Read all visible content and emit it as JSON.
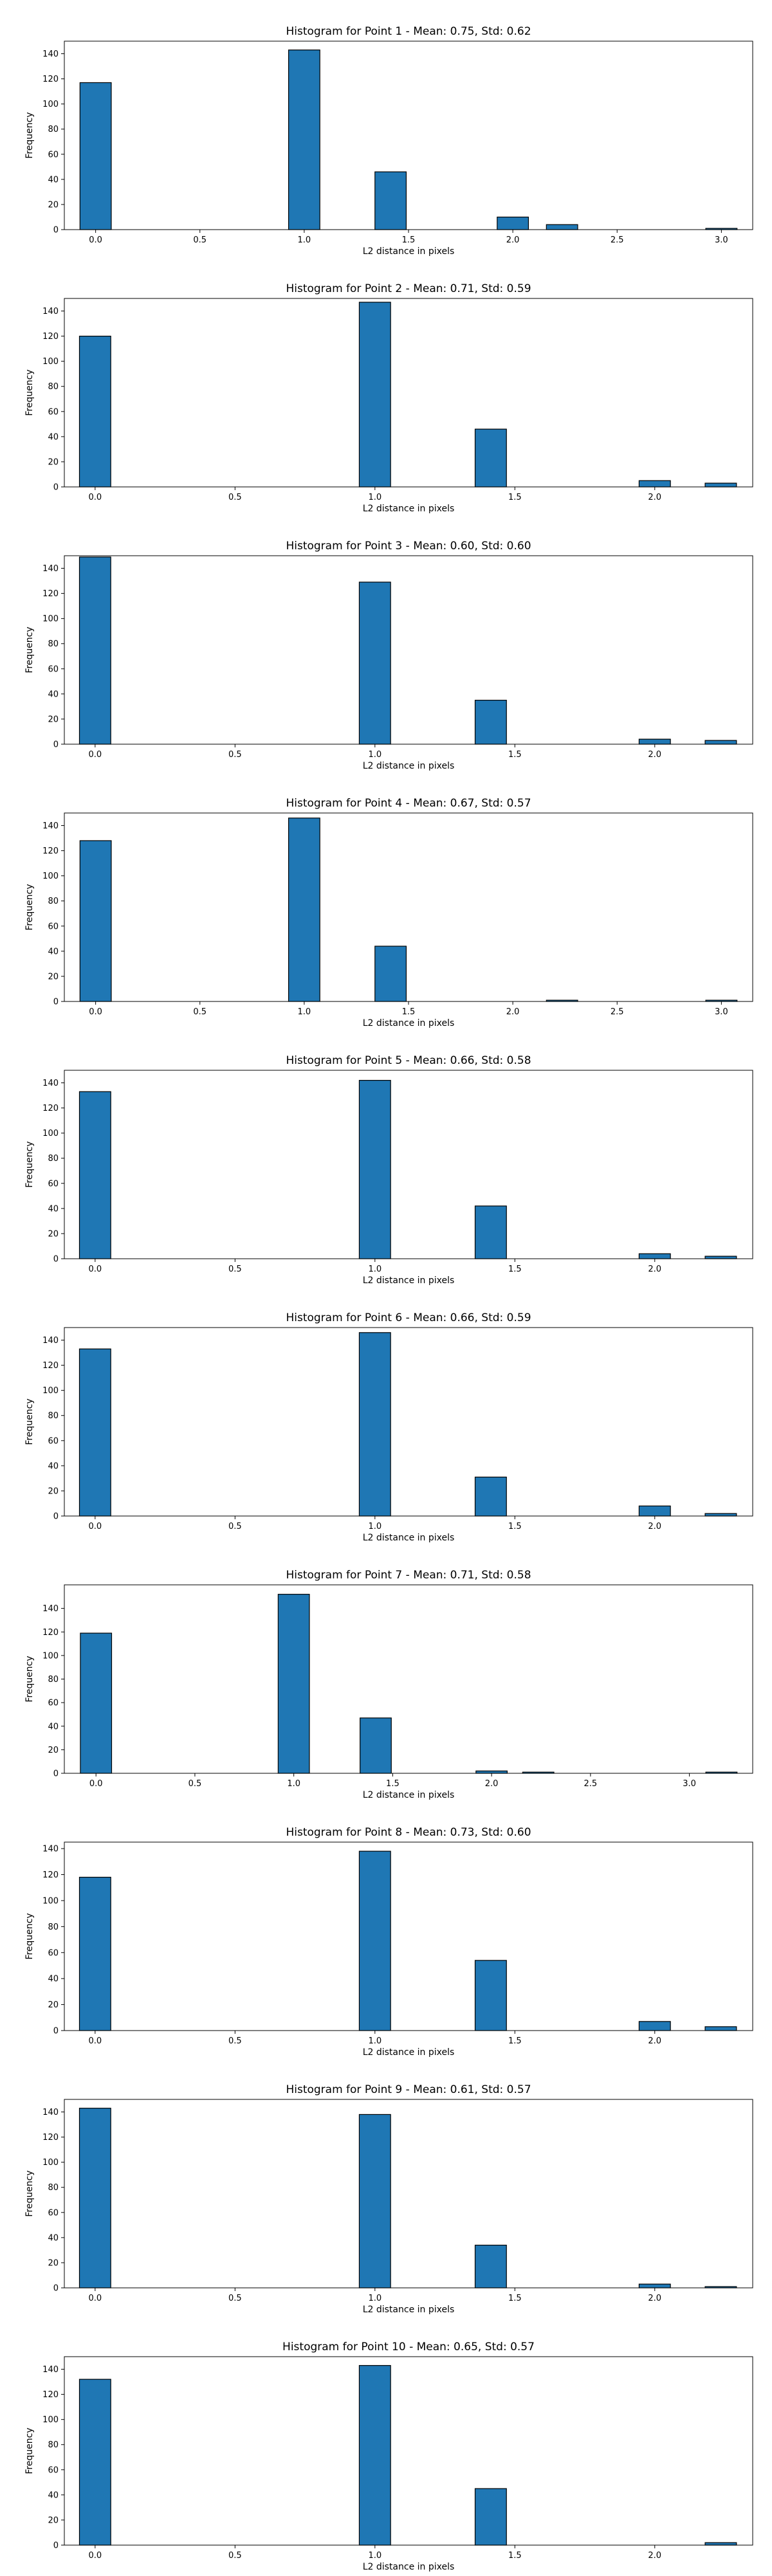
{
  "figure": {
    "ylabel": "Frequency",
    "xlabel": "L2 distance in pixels",
    "bar_color": "#1f77b4",
    "bar_edge_color": "#000000"
  },
  "chart_data": [
    {
      "type": "bar",
      "title": "Histogram for Point 1 - Mean: 0.75, Std: 0.62",
      "xlabel": "L2 distance in pixels",
      "ylabel": "Frequency",
      "xlim": [
        -0.15,
        3.15
      ],
      "ylim": [
        0,
        150
      ],
      "xticks": [
        0.0,
        0.5,
        1.0,
        1.5,
        2.0,
        2.5,
        3.0
      ],
      "yticks": [
        0,
        20,
        40,
        60,
        80,
        100,
        120,
        140
      ],
      "bin_width": 0.15,
      "bars": [
        {
          "x": 0.0,
          "value": 117
        },
        {
          "x": 1.0,
          "value": 143
        },
        {
          "x": 1.414,
          "value": 46
        },
        {
          "x": 2.0,
          "value": 10
        },
        {
          "x": 2.236,
          "value": 4
        },
        {
          "x": 3.0,
          "value": 1
        }
      ]
    },
    {
      "type": "bar",
      "title": "Histogram for Point 2 - Mean: 0.71, Std: 0.59",
      "xlabel": "L2 distance in pixels",
      "ylabel": "Frequency",
      "xlim": [
        -0.11,
        2.35
      ],
      "ylim": [
        0,
        150
      ],
      "xticks": [
        0.0,
        0.5,
        1.0,
        1.5,
        2.0
      ],
      "yticks": [
        0,
        20,
        40,
        60,
        80,
        100,
        120,
        140
      ],
      "bin_width": 0.112,
      "bars": [
        {
          "x": 0.0,
          "value": 120
        },
        {
          "x": 1.0,
          "value": 147
        },
        {
          "x": 1.414,
          "value": 46
        },
        {
          "x": 2.0,
          "value": 5
        },
        {
          "x": 2.236,
          "value": 3
        }
      ]
    },
    {
      "type": "bar",
      "title": "Histogram for Point 3 - Mean: 0.60, Std: 0.60",
      "xlabel": "L2 distance in pixels",
      "ylabel": "Frequency",
      "xlim": [
        -0.11,
        2.35
      ],
      "ylim": [
        0,
        150
      ],
      "xticks": [
        0.0,
        0.5,
        1.0,
        1.5,
        2.0
      ],
      "yticks": [
        0,
        20,
        40,
        60,
        80,
        100,
        120,
        140
      ],
      "bin_width": 0.112,
      "bars": [
        {
          "x": 0.0,
          "value": 149
        },
        {
          "x": 1.0,
          "value": 129
        },
        {
          "x": 1.414,
          "value": 35
        },
        {
          "x": 2.0,
          "value": 4
        },
        {
          "x": 2.236,
          "value": 3
        }
      ]
    },
    {
      "type": "bar",
      "title": "Histogram for Point 4 - Mean: 0.67, Std: 0.57",
      "xlabel": "L2 distance in pixels",
      "ylabel": "Frequency",
      "xlim": [
        -0.15,
        3.15
      ],
      "ylim": [
        0,
        150
      ],
      "xticks": [
        0.0,
        0.5,
        1.0,
        1.5,
        2.0,
        2.5,
        3.0
      ],
      "yticks": [
        0,
        20,
        40,
        60,
        80,
        100,
        120,
        140
      ],
      "bin_width": 0.15,
      "bars": [
        {
          "x": 0.0,
          "value": 128
        },
        {
          "x": 1.0,
          "value": 146
        },
        {
          "x": 1.414,
          "value": 44
        },
        {
          "x": 2.236,
          "value": 1
        },
        {
          "x": 3.0,
          "value": 1
        }
      ]
    },
    {
      "type": "bar",
      "title": "Histogram for Point 5 - Mean: 0.66, Std: 0.58",
      "xlabel": "L2 distance in pixels",
      "ylabel": "Frequency",
      "xlim": [
        -0.11,
        2.35
      ],
      "ylim": [
        0,
        150
      ],
      "xticks": [
        0.0,
        0.5,
        1.0,
        1.5,
        2.0
      ],
      "yticks": [
        0,
        20,
        40,
        60,
        80,
        100,
        120,
        140
      ],
      "bin_width": 0.112,
      "bars": [
        {
          "x": 0.0,
          "value": 133
        },
        {
          "x": 1.0,
          "value": 142
        },
        {
          "x": 1.414,
          "value": 42
        },
        {
          "x": 2.0,
          "value": 4
        },
        {
          "x": 2.236,
          "value": 2
        }
      ]
    },
    {
      "type": "bar",
      "title": "Histogram for Point 6 - Mean: 0.66, Std: 0.59",
      "xlabel": "L2 distance in pixels",
      "ylabel": "Frequency",
      "xlim": [
        -0.11,
        2.35
      ],
      "ylim": [
        0,
        150
      ],
      "xticks": [
        0.0,
        0.5,
        1.0,
        1.5,
        2.0
      ],
      "yticks": [
        0,
        20,
        40,
        60,
        80,
        100,
        120,
        140
      ],
      "bin_width": 0.112,
      "bars": [
        {
          "x": 0.0,
          "value": 133
        },
        {
          "x": 1.0,
          "value": 146
        },
        {
          "x": 1.414,
          "value": 31
        },
        {
          "x": 2.0,
          "value": 8
        },
        {
          "x": 2.236,
          "value": 2
        }
      ]
    },
    {
      "type": "bar",
      "title": "Histogram for Point 7 - Mean: 0.71, Std: 0.58",
      "xlabel": "L2 distance in pixels",
      "ylabel": "Frequency",
      "xlim": [
        -0.16,
        3.32
      ],
      "ylim": [
        0,
        160
      ],
      "xticks": [
        0.0,
        0.5,
        1.0,
        1.5,
        2.0,
        2.5,
        3.0
      ],
      "yticks": [
        0,
        20,
        40,
        60,
        80,
        100,
        120,
        140
      ],
      "bin_width": 0.158,
      "bars": [
        {
          "x": 0.0,
          "value": 119
        },
        {
          "x": 1.0,
          "value": 152
        },
        {
          "x": 1.414,
          "value": 47
        },
        {
          "x": 2.0,
          "value": 2
        },
        {
          "x": 2.236,
          "value": 1
        },
        {
          "x": 3.162,
          "value": 1
        }
      ]
    },
    {
      "type": "bar",
      "title": "Histogram for Point 8 - Mean: 0.73, Std: 0.60",
      "xlabel": "L2 distance in pixels",
      "ylabel": "Frequency",
      "xlim": [
        -0.11,
        2.35
      ],
      "ylim": [
        0,
        145
      ],
      "xticks": [
        0.0,
        0.5,
        1.0,
        1.5,
        2.0
      ],
      "yticks": [
        0,
        20,
        40,
        60,
        80,
        100,
        120,
        140
      ],
      "bin_width": 0.112,
      "bars": [
        {
          "x": 0.0,
          "value": 118
        },
        {
          "x": 1.0,
          "value": 138
        },
        {
          "x": 1.414,
          "value": 54
        },
        {
          "x": 2.0,
          "value": 7
        },
        {
          "x": 2.236,
          "value": 3
        }
      ]
    },
    {
      "type": "bar",
      "title": "Histogram for Point 9 - Mean: 0.61, Std: 0.57",
      "xlabel": "L2 distance in pixels",
      "ylabel": "Frequency",
      "xlim": [
        -0.11,
        2.35
      ],
      "ylim": [
        0,
        150
      ],
      "xticks": [
        0.0,
        0.5,
        1.0,
        1.5,
        2.0
      ],
      "yticks": [
        0,
        20,
        40,
        60,
        80,
        100,
        120,
        140
      ],
      "bin_width": 0.112,
      "bars": [
        {
          "x": 0.0,
          "value": 143
        },
        {
          "x": 1.0,
          "value": 138
        },
        {
          "x": 1.414,
          "value": 34
        },
        {
          "x": 2.0,
          "value": 3
        },
        {
          "x": 2.236,
          "value": 1
        }
      ]
    },
    {
      "type": "bar",
      "title": "Histogram for Point 10 - Mean: 0.65, Std: 0.57",
      "xlabel": "L2 distance in pixels",
      "ylabel": "Frequency",
      "xlim": [
        -0.11,
        2.35
      ],
      "ylim": [
        0,
        150
      ],
      "xticks": [
        0.0,
        0.5,
        1.0,
        1.5,
        2.0
      ],
      "yticks": [
        0,
        20,
        40,
        60,
        80,
        100,
        120,
        140
      ],
      "bin_width": 0.112,
      "bars": [
        {
          "x": 0.0,
          "value": 132
        },
        {
          "x": 1.0,
          "value": 143
        },
        {
          "x": 1.414,
          "value": 45
        },
        {
          "x": 2.236,
          "value": 2
        }
      ]
    }
  ]
}
